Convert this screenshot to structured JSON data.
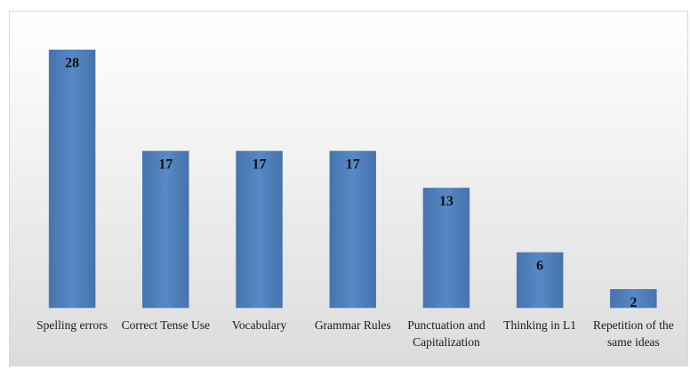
{
  "chart_data": {
    "type": "bar",
    "categories": [
      "Spelling errors",
      "Correct Tense Use",
      "Vocabulary",
      "Grammar Rules",
      "Punctuation and Capitalization",
      "Thinking in L1",
      "Repetition of the same ideas"
    ],
    "values": [
      28,
      17,
      17,
      17,
      13,
      6,
      2
    ],
    "color": "#4f81bd",
    "ylim": [
      0,
      28
    ]
  }
}
